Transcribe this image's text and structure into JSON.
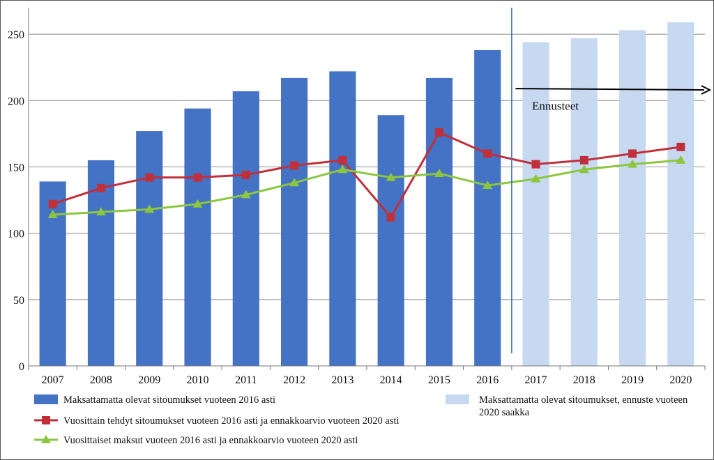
{
  "chart_data": {
    "type": "bar",
    "title": "",
    "xlabel": "",
    "ylabel": "",
    "ylim": [
      0,
      270
    ],
    "yticks": [
      0,
      50,
      100,
      150,
      200,
      250
    ],
    "categories": [
      "2007",
      "2008",
      "2009",
      "2010",
      "2011",
      "2012",
      "2013",
      "2014",
      "2015",
      "2016",
      "2017",
      "2018",
      "2019",
      "2020"
    ],
    "grid": "horizontal",
    "colors": {
      "bars_actual": "#4472c4",
      "bars_forecast": "#c6d9f1",
      "line_red": "#c0303a",
      "line_green": "#8cc63f",
      "grid": "#8c8c8c",
      "axis": "#777777",
      "divider": "#4472c4",
      "arrow": "#000000"
    },
    "series": [
      {
        "name": "Maksattamatta olevat sitoumukset vuoteen 2016 asti",
        "kind": "bar",
        "color_key": "bars_actual",
        "values": [
          139,
          155,
          177,
          194,
          207,
          217,
          222,
          189,
          217,
          238,
          null,
          null,
          null,
          null
        ]
      },
      {
        "name": "Maksattamatta olevat sitoumukset, ennuste vuoteen 2020 saakka",
        "kind": "bar",
        "color_key": "bars_forecast",
        "values": [
          null,
          null,
          null,
          null,
          null,
          null,
          null,
          null,
          null,
          null,
          244,
          247,
          253,
          259
        ]
      },
      {
        "name": "Vuosittain tehdyt sitoumukset vuoteen 2016 asti ja ennakkoarvio vuoteen 2020 asti",
        "kind": "line",
        "marker": "square",
        "color_key": "line_red",
        "values": [
          122,
          134,
          142,
          142,
          144,
          151,
          155,
          112,
          176,
          160,
          152,
          155,
          160,
          165
        ]
      },
      {
        "name": "Vuosittaiset maksut vuoteen 2016 asti ja ennakkoarvio vuoteen 2020 asti",
        "kind": "line",
        "marker": "triangle",
        "color_key": "line_green",
        "values": [
          114,
          116,
          118,
          122,
          129,
          138,
          148,
          142,
          145,
          136,
          141,
          148,
          152,
          155
        ]
      }
    ],
    "annotation": {
      "text": "Ennusteet",
      "arrow_from_category": "2017",
      "arrow_to_category": "2020"
    },
    "legend": {
      "position": "bottom",
      "entries": [
        {
          "label": "Maksattamatta olevat sitoumukset vuoteen 2016 asti",
          "series": 0
        },
        {
          "label": "Vuosittain tehdyt sitoumukset vuoteen 2016 asti ja ennakkoarvio vuoteen 2020 asti",
          "series": 2
        },
        {
          "label": "Vuosittaiset maksut vuoteen 2016 asti ja ennakkoarvio vuoteen 2020 asti",
          "series": 3
        },
        {
          "label_lines": [
            "Maksattamatta olevat sitoumukset, ennuste vuoteen",
            "2020 saakka"
          ],
          "series": 1
        }
      ]
    }
  }
}
